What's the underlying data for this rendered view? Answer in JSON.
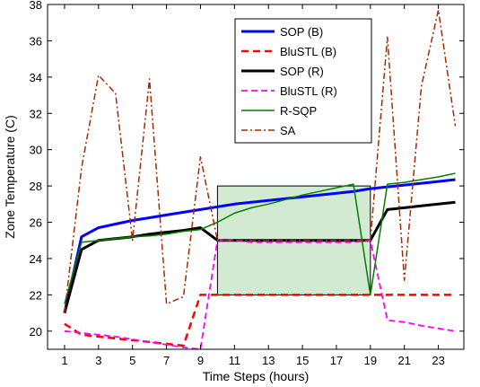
{
  "chart_data": {
    "type": "line",
    "xlabel": "Time Steps (hours)",
    "ylabel": "Zone Temperature (C)",
    "xlim": [
      0,
      24.5
    ],
    "ylim": [
      19,
      38
    ],
    "x_ticks": [
      1,
      3,
      5,
      7,
      9,
      11,
      13,
      15,
      17,
      19,
      21,
      23
    ],
    "y_ticks": [
      20,
      22,
      24,
      26,
      28,
      30,
      32,
      34,
      36,
      38
    ],
    "legend_position": "top-center",
    "comfort_region": {
      "x": [
        10,
        19
      ],
      "y": [
        22,
        28
      ],
      "fill": "#d2ead2",
      "edge": "#000000"
    },
    "series": [
      {
        "name": "SOP (B)",
        "color": "#0000ff",
        "width": 3,
        "dash": "solid",
        "x": [
          1,
          2,
          3,
          4,
          5,
          6,
          7,
          8,
          9,
          10,
          11,
          12,
          13,
          14,
          15,
          16,
          17,
          18,
          19,
          20,
          21,
          22,
          23,
          24
        ],
        "y": [
          21.0,
          25.2,
          25.7,
          25.9,
          26.1,
          26.25,
          26.4,
          26.55,
          26.7,
          26.85,
          27.0,
          27.1,
          27.2,
          27.3,
          27.4,
          27.5,
          27.6,
          27.7,
          27.85,
          27.95,
          28.05,
          28.15,
          28.25,
          28.35
        ]
      },
      {
        "name": "BluSTL (B)",
        "color": "#ff0000",
        "width": 2.5,
        "dash": "8,5",
        "x": [
          1,
          2,
          3,
          4,
          5,
          6,
          7,
          8,
          9,
          10,
          11,
          12,
          13,
          14,
          15,
          16,
          17,
          18,
          19,
          20,
          21,
          22,
          23,
          24
        ],
        "y": [
          20.4,
          19.8,
          19.7,
          19.6,
          19.5,
          19.4,
          19.3,
          19.2,
          22.0,
          22.0,
          22.0,
          22.0,
          22.0,
          22.0,
          22.0,
          22.0,
          22.0,
          22.0,
          22.0,
          22.0,
          22.0,
          22.0,
          22.0,
          22.0
        ]
      },
      {
        "name": "SOP (R)",
        "color": "#000000",
        "width": 3,
        "dash": "solid",
        "x": [
          1,
          2,
          3,
          4,
          5,
          6,
          7,
          8,
          9,
          10,
          11,
          12,
          13,
          14,
          15,
          16,
          17,
          18,
          19,
          20,
          21,
          22,
          23,
          24
        ],
        "y": [
          21.0,
          24.5,
          25.0,
          25.1,
          25.2,
          25.35,
          25.45,
          25.55,
          25.7,
          25.0,
          25.0,
          25.0,
          25.0,
          25.0,
          25.0,
          25.0,
          25.0,
          25.0,
          25.0,
          26.7,
          26.8,
          26.9,
          27.0,
          27.1
        ]
      },
      {
        "name": "BluSTL (R)",
        "color": "#ff00ff",
        "width": 1.8,
        "dash": "7,4",
        "x": [
          1,
          2,
          3,
          4,
          5,
          6,
          7,
          8,
          9,
          10,
          11,
          12,
          13,
          14,
          15,
          16,
          17,
          18,
          19,
          20,
          21,
          22,
          23,
          24
        ],
        "y": [
          20.0,
          19.9,
          19.8,
          19.7,
          19.55,
          19.4,
          19.25,
          19.1,
          19.0,
          25.0,
          25.0,
          24.9,
          24.9,
          24.9,
          24.9,
          24.9,
          24.9,
          24.9,
          25.0,
          20.6,
          20.5,
          20.3,
          20.15,
          20.0
        ]
      },
      {
        "name": "R-SQP",
        "color": "#008000",
        "width": 1.5,
        "dash": "solid",
        "x": [
          1,
          2,
          3,
          4,
          5,
          6,
          7,
          8,
          9,
          10,
          11,
          12,
          13,
          14,
          15,
          16,
          17,
          18,
          19,
          20,
          21,
          22,
          23,
          24
        ],
        "y": [
          21.5,
          24.9,
          25.0,
          25.1,
          25.2,
          25.25,
          25.35,
          25.5,
          25.6,
          26.0,
          26.5,
          26.8,
          27.0,
          27.25,
          27.5,
          27.7,
          27.9,
          28.1,
          22.0,
          28.1,
          28.2,
          28.35,
          28.5,
          28.7
        ]
      },
      {
        "name": "SA",
        "color": "#a52a00",
        "width": 1.5,
        "dash": "7,3,2,3",
        "x": [
          1,
          2,
          3,
          4,
          5,
          6,
          7,
          8,
          9,
          10,
          11,
          12,
          13,
          14,
          15,
          16,
          17,
          18,
          19,
          20,
          21,
          22,
          23,
          24
        ],
        "y": [
          21.0,
          29.0,
          34.1,
          33.1,
          25.0,
          33.9,
          21.5,
          21.9,
          29.6,
          25.0,
          25.0,
          25.0,
          25.0,
          25.0,
          25.0,
          25.0,
          25.0,
          25.0,
          25.0,
          36.2,
          22.8,
          33.5,
          37.7,
          31.3
        ]
      }
    ]
  }
}
